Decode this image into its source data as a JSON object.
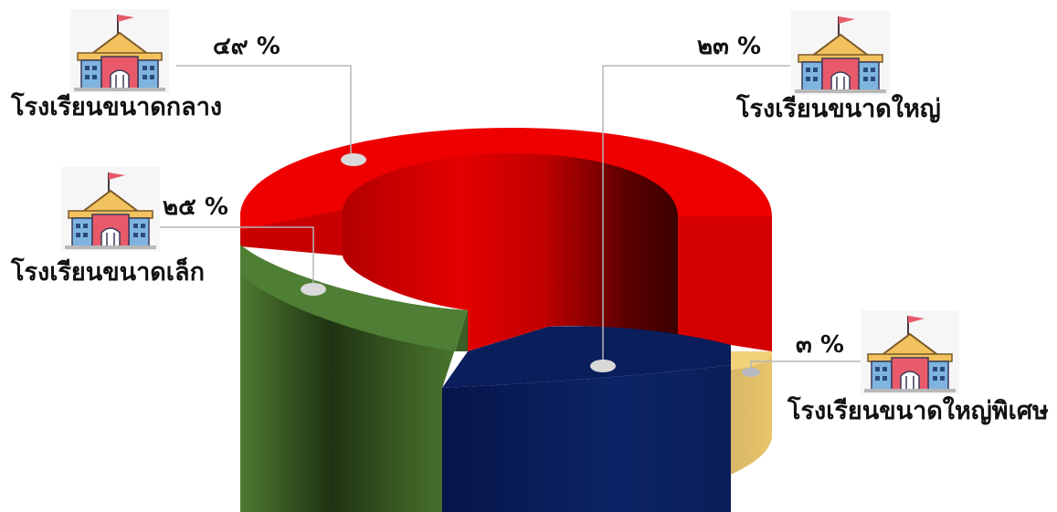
{
  "chart_data": {
    "type": "pie",
    "variant": "3d-donut",
    "title": "",
    "segments": [
      {
        "label": "โรงเรียนขนาดกลาง",
        "value": 49,
        "value_label": "๔๙ %",
        "color": "#e50000"
      },
      {
        "label": "โรงเรียนขนาดใหญ่",
        "value": 23,
        "value_label": "๒๓ %",
        "color": "#0a1f5c"
      },
      {
        "label": "โรงเรียนขนาดใหญ่พิเศษ",
        "value": 3,
        "value_label": "๓ %",
        "color": "#e8c56a"
      },
      {
        "label": "โรงเรียนขนาดเล็ก",
        "value": 25,
        "value_label": "๒๕ %",
        "color": "#4a7a32"
      }
    ],
    "legend": "none",
    "icon": "school-building-icon"
  }
}
